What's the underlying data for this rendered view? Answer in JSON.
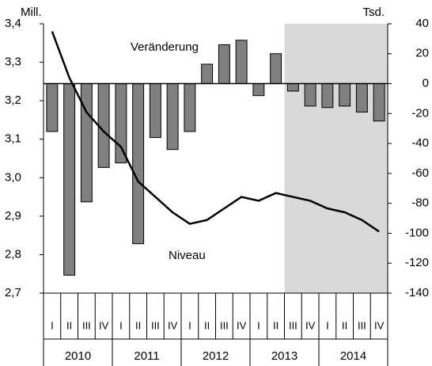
{
  "chart_data": {
    "type": "combo",
    "left_unit": "Mill.",
    "right_unit": "Tsd.",
    "categories": [
      "I",
      "II",
      "III",
      "IV",
      "I",
      "II",
      "III",
      "IV",
      "I",
      "II",
      "III",
      "IV",
      "I",
      "II",
      "III",
      "IV",
      "I",
      "II",
      "III",
      "IV"
    ],
    "years": [
      "2010",
      "2011",
      "2012",
      "2013",
      "2014"
    ],
    "series": [
      {
        "name": "Veränderung",
        "type": "bar",
        "axis": "y2",
        "color": "#808080",
        "values": [
          -32,
          -128,
          -79,
          -56,
          -53,
          -107,
          -36,
          -44,
          -32,
          13,
          26,
          29,
          -8,
          20,
          -5,
          -15,
          -16,
          -15,
          -19,
          -25
        ]
      },
      {
        "name": "Niveau",
        "type": "line",
        "color": "#000000",
        "values": [
          3.38,
          3.26,
          3.17,
          3.12,
          3.08,
          2.99,
          2.95,
          2.91,
          2.88,
          2.89,
          2.92,
          2.95,
          2.94,
          2.96,
          2.95,
          2.94,
          2.92,
          2.91,
          2.89,
          2.86
        ]
      }
    ],
    "ylim": [
      2.7,
      3.4
    ],
    "yticks": [
      {
        "value": 2.7,
        "label": "2,7"
      },
      {
        "value": 2.8,
        "label": "2,8"
      },
      {
        "value": 2.9,
        "label": "2,9"
      },
      {
        "value": 3.0,
        "label": "3,0"
      },
      {
        "value": 3.1,
        "label": "3,1"
      },
      {
        "value": 3.2,
        "label": "3,2"
      },
      {
        "value": 3.3,
        "label": "3,3"
      },
      {
        "value": 3.4,
        "label": "3,4"
      }
    ],
    "y2lim": [
      -140,
      40
    ],
    "y2ticks": [
      -140,
      -120,
      -100,
      -80,
      -60,
      -40,
      -20,
      0,
      20,
      40
    ],
    "shaded_range": [
      14,
      19
    ],
    "shade_color": "#d9d9d9"
  }
}
